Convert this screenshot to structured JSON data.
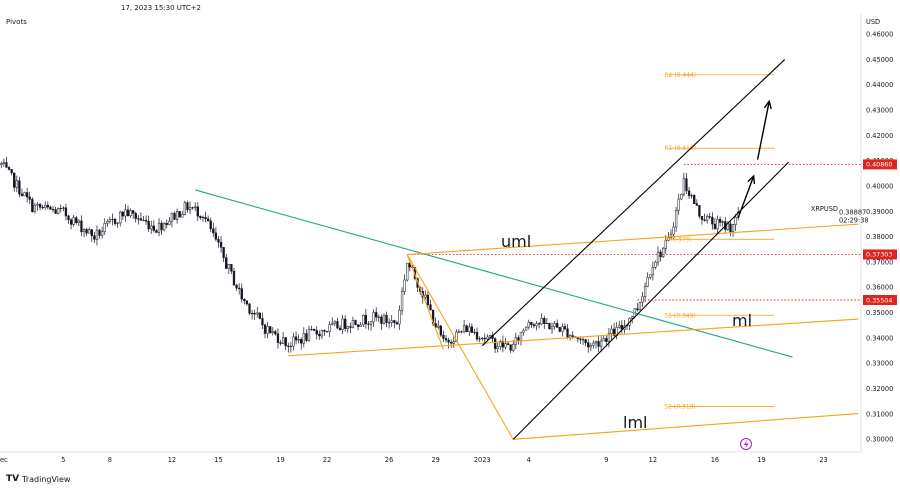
{
  "header": {
    "timestamp": "17, 2023 15:30 UTC+2",
    "indicator": "Pivots"
  },
  "brand": {
    "logo_glyph": "TV",
    "name": "TradingView"
  },
  "colors": {
    "background": "#ffffff",
    "candle": "#131722",
    "orange": "#f7a21b",
    "teal": "#22a68f",
    "red": "#e0231c",
    "black": "#000000"
  },
  "chart_data": {
    "type": "candlestick",
    "symbol": "XRPUSD",
    "currency": "USD",
    "y_axis": {
      "ticks": [
        "0.46000",
        "0.45000",
        "0.44000",
        "0.43000",
        "0.42000",
        "0.41000",
        "0.40000",
        "0.39000",
        "0.38000",
        "0.37000",
        "0.36000",
        "0.35000",
        "0.34000",
        "0.33000",
        "0.32000",
        "0.31000",
        "0.30000"
      ],
      "range": [
        0.295,
        0.468
      ]
    },
    "x_axis": {
      "ticks": [
        "Dec",
        "5",
        "8",
        "12",
        "15",
        "19",
        "22",
        "26",
        "29",
        "2023",
        "4",
        "9",
        "12",
        "16",
        "19",
        "23"
      ],
      "tick_dates": [
        "2022-12-01",
        "2022-12-05",
        "2022-12-08",
        "2022-12-12",
        "2022-12-15",
        "2022-12-19",
        "2022-12-22",
        "2022-12-26",
        "2022-12-29",
        "2023-01-01",
        "2023-01-04",
        "2023-01-09",
        "2023-01-12",
        "2023-01-16",
        "2023-01-19",
        "2023-01-23"
      ],
      "range": [
        "2022-11-30T22:00",
        "2023-01-25T10:00"
      ]
    },
    "price_labels": [
      {
        "text": "0.40860",
        "value": 0.4086
      },
      {
        "text": "0.37303",
        "value": 0.37303
      },
      {
        "text": "0.35504",
        "value": 0.35504
      }
    ],
    "current_price": {
      "label": "0.38887",
      "countdown": "02:29:38"
    },
    "pivot_levels": [
      {
        "label": "R2 (0.444)",
        "value": 0.444,
        "from": "2023-01-13T00:00",
        "to": "2023-01-19T20:00"
      },
      {
        "label": "R1 (0.415)",
        "value": 0.415,
        "from": "2023-01-13T00:00",
        "to": "2023-01-19T20:00"
      },
      {
        "label": "P (0.379)",
        "value": 0.379,
        "from": "2023-01-13T00:00",
        "to": "2023-01-19T20:00"
      },
      {
        "label": "S1 (0.349)",
        "value": 0.349,
        "from": "2023-01-13T00:00",
        "to": "2023-01-19T20:00"
      },
      {
        "label": "S2 (0.313)",
        "value": 0.313,
        "from": "2023-01-13T00:00",
        "to": "2023-01-19T20:00"
      }
    ],
    "fork_labels": {
      "uml": "uml",
      "ml": "ml",
      "lml": "lml"
    },
    "trend_lines": [
      {
        "name": "downtrend",
        "color": "teal",
        "points": [
          [
            "2022-12-13T12:00",
            0.3985
          ],
          [
            "2023-01-21T00:00",
            0.3325
          ]
        ]
      },
      {
        "name": "uml",
        "color": "orange",
        "points": [
          [
            "2022-12-27T04:00",
            0.373
          ],
          [
            "2023-01-25T06:00",
            0.385
          ]
        ]
      },
      {
        "name": "ml",
        "color": "orange",
        "points": [
          [
            "2022-12-19T12:00",
            0.333
          ],
          [
            "2023-01-25T06:00",
            0.3475
          ]
        ]
      },
      {
        "name": "lml",
        "color": "orange",
        "points": [
          [
            "2023-01-03T00:00",
            0.3
          ],
          [
            "2023-01-25T06:00",
            0.3102
          ]
        ]
      },
      {
        "name": "fork-handle-1",
        "color": "orange",
        "points": [
          [
            "2022-12-27T04:00",
            0.373
          ],
          [
            "2023-01-03T00:00",
            0.3
          ]
        ]
      },
      {
        "name": "fork-handle-2",
        "color": "orange",
        "points": [
          [
            "2022-12-27T04:00",
            0.373
          ],
          [
            "2022-12-29T12:00",
            0.3355
          ]
        ]
      },
      {
        "name": "channel-lower",
        "color": "black",
        "points": [
          [
            "2023-01-03T00:00",
            0.3
          ],
          [
            "2023-01-20T18:00",
            0.4095
          ]
        ]
      },
      {
        "name": "channel-upper",
        "color": "black",
        "points": [
          [
            "2023-01-01T00:00",
            0.337
          ],
          [
            "2023-01-20T12:00",
            0.45
          ]
        ]
      }
    ],
    "dotted_levels": [
      {
        "value": 0.4086,
        "from": "2023-01-14T00:00"
      },
      {
        "value": 0.37303,
        "from": "2022-12-27T04:00"
      },
      {
        "value": 0.35504,
        "from": "2023-01-11T00:00"
      }
    ],
    "arrows": [
      {
        "from": [
          "2023-01-17T12:00",
          0.3875
        ],
        "to": [
          "2023-01-18T12:00",
          0.404
        ]
      },
      {
        "from": [
          "2023-01-18T18:00",
          0.4105
        ],
        "to": [
          "2023-01-19T12:00",
          0.4335
        ]
      }
    ],
    "anchors": [
      [
        "2022-12-01T00:00",
        0.4085
      ],
      [
        "2022-12-03T00:00",
        0.392
      ],
      [
        "2022-12-05T00:00",
        0.3895
      ],
      [
        "2022-12-07T00:00",
        0.38
      ],
      [
        "2022-12-09T00:00",
        0.39
      ],
      [
        "2022-12-11T00:00",
        0.3835
      ],
      [
        "2022-12-13T00:00",
        0.392
      ],
      [
        "2022-12-14T00:00",
        0.389
      ],
      [
        "2022-12-15T00:00",
        0.376
      ],
      [
        "2022-12-16T12:00",
        0.356
      ],
      [
        "2022-12-18T00:00",
        0.344
      ],
      [
        "2022-12-19T12:00",
        0.3375
      ],
      [
        "2022-12-21T00:00",
        0.3415
      ],
      [
        "2022-12-23T00:00",
        0.3455
      ],
      [
        "2022-12-25T00:00",
        0.348
      ],
      [
        "2022-12-26T12:00",
        0.346
      ],
      [
        "2022-12-27T04:00",
        0.37
      ],
      [
        "2022-12-28T00:00",
        0.36
      ],
      [
        "2022-12-29T12:00",
        0.338
      ],
      [
        "2022-12-31T00:00",
        0.344
      ],
      [
        "2023-01-02T00:00",
        0.3375
      ],
      [
        "2023-01-03T00:00",
        0.3365
      ],
      [
        "2023-01-04T00:00",
        0.347
      ],
      [
        "2023-01-06T00:00",
        0.344
      ],
      [
        "2023-01-08T00:00",
        0.337
      ],
      [
        "2023-01-10T00:00",
        0.344
      ],
      [
        "2023-01-11T00:00",
        0.352
      ],
      [
        "2023-01-12T00:00",
        0.37
      ],
      [
        "2023-01-13T00:00",
        0.378
      ],
      [
        "2023-01-14T00:00",
        0.402
      ],
      [
        "2023-01-15T00:00",
        0.389
      ],
      [
        "2023-01-16T00:00",
        0.385
      ],
      [
        "2023-01-17T00:00",
        0.384
      ],
      [
        "2023-01-17T15:00",
        0.3889
      ]
    ]
  }
}
